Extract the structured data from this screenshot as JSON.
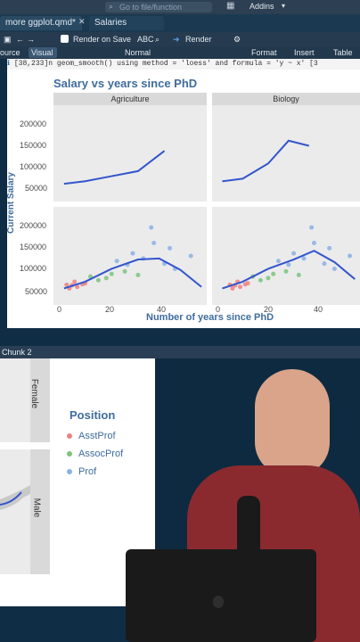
{
  "top_bar": {
    "search_placeholder": "Go to file/function",
    "addins_label": "Addins"
  },
  "tabs": [
    {
      "label": "more ggplot.qmd*"
    },
    {
      "label": "Salaries"
    }
  ],
  "toolbar": {
    "source_label": "ource",
    "visual_label": "Visual",
    "render_on_save_label": "Render on Save",
    "render_label": "Render",
    "normal_label": "Normal",
    "format_label": "Format",
    "insert_label": "Insert",
    "table_label": "Table"
  },
  "console_message": "[38,233]n  geom_smooth()  using method = 'loess' and formula = 'y ~ x'  [3",
  "chart_data": {
    "type": "scatter",
    "title": "Salary vs years since PhD",
    "xlabel": "Number of years since PhD",
    "ylabel": "Current Salary",
    "facets_cols": [
      "Agriculture",
      "Biology"
    ],
    "x_ticks": [
      "0",
      "20",
      "40"
    ],
    "y_ticks": [
      "50000",
      "100000",
      "150000",
      "200000"
    ],
    "series": [
      {
        "name": "AsstProf",
        "color": "#f08080",
        "points": [
          [
            5,
            78000
          ],
          [
            7,
            75000
          ],
          [
            9,
            80000
          ],
          [
            4,
            72000
          ],
          [
            3,
            79000
          ],
          [
            10,
            82000
          ],
          [
            6,
            85000
          ]
        ]
      },
      {
        "name": "AssocProf",
        "color": "#7cc47c",
        "points": [
          [
            12,
            95000
          ],
          [
            15,
            88000
          ],
          [
            20,
            100000
          ],
          [
            18,
            92000
          ],
          [
            25,
            105000
          ],
          [
            30,
            98000
          ]
        ]
      },
      {
        "name": "Prof",
        "color": "#8ab0e6",
        "points": [
          [
            22,
            125000
          ],
          [
            28,
            140000
          ],
          [
            32,
            130000
          ],
          [
            36,
            160000
          ],
          [
            40,
            120000
          ],
          [
            44,
            110000
          ],
          [
            50,
            135000
          ],
          [
            35,
            190000
          ],
          [
            42,
            150000
          ],
          [
            26,
            118000
          ]
        ]
      }
    ],
    "smooth": [
      [
        2,
        72000
      ],
      [
        10,
        85000
      ],
      [
        20,
        110000
      ],
      [
        30,
        128000
      ],
      [
        38,
        130000
      ],
      [
        46,
        108000
      ],
      [
        54,
        75000
      ]
    ]
  },
  "chunk_bar_label": "Chunk 2",
  "facet_rows": [
    "Female",
    "Male"
  ],
  "legend": {
    "title": "Position",
    "items": [
      "AsstProf",
      "AssocProf",
      "Prof"
    ]
  }
}
